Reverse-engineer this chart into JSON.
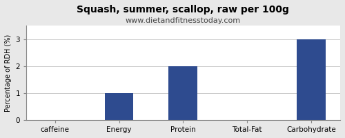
{
  "title": "Squash, summer, scallop, raw per 100g",
  "subtitle": "www.dietandfitnesstoday.com",
  "categories": [
    "caffeine",
    "Energy",
    "Protein",
    "Total-Fat",
    "Carbohydrate"
  ],
  "values": [
    0.0,
    1.0,
    2.0,
    0.0,
    3.0
  ],
  "bar_color": "#2e4b8f",
  "ylabel": "Percentage of RDH (%)",
  "ylim": [
    0,
    3.5
  ],
  "yticks": [
    0.0,
    1.0,
    2.0,
    3.0
  ],
  "background_color": "#e8e8e8",
  "plot_bg_color": "#ffffff",
  "title_fontsize": 10,
  "title_fontweight": "bold",
  "subtitle_fontsize": 8,
  "ylabel_fontsize": 7,
  "xlabel_fontsize": 7.5,
  "tick_fontsize": 7.5,
  "bar_width": 0.45
}
